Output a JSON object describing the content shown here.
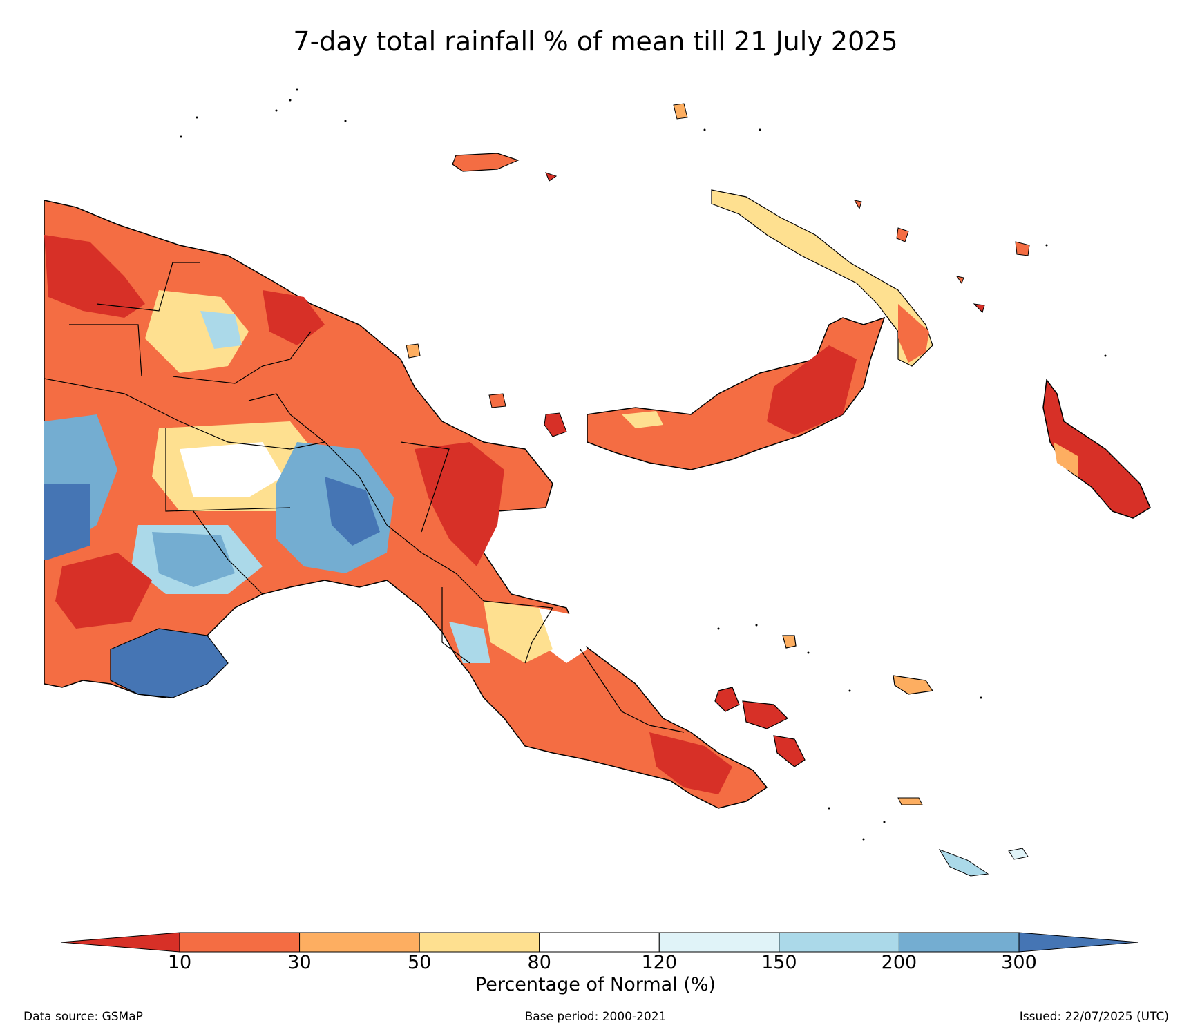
{
  "title": "7-day total rainfall % of mean till 21 July 2025",
  "colorbar": {
    "label": "Percentage of Normal (%)",
    "ticks": [
      "10",
      "30",
      "50",
      "80",
      "120",
      "150",
      "200",
      "300"
    ],
    "colors": {
      "below_10": "#d73027",
      "c10_30": "#f46d43",
      "c30_50": "#fdae61",
      "c50_80": "#fee090",
      "c80_120": "#ffffff",
      "c120_150": "#e0f3f8",
      "c150_200": "#abd9e9",
      "c200_300": "#74add1",
      "above_300": "#4575b4"
    }
  },
  "footer": {
    "source": "Data source: GSMaP",
    "base_period": "Base period: 2000-2021",
    "issued": "Issued: 22/07/2025 (UTC)"
  }
}
